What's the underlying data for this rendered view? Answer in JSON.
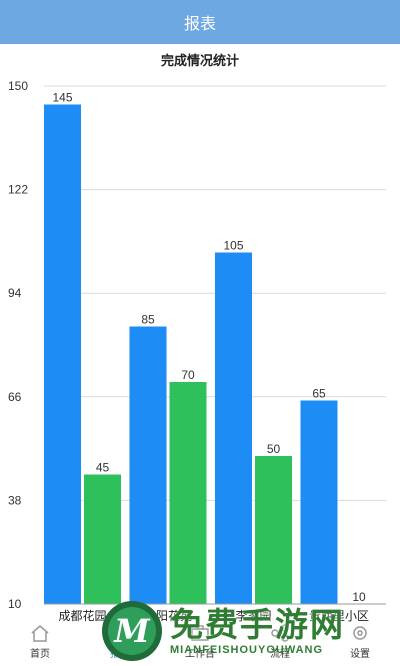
{
  "header": {
    "title": "报表"
  },
  "chart_data": {
    "type": "bar",
    "title": "完成情况统计",
    "categories": [
      "成都花园",
      "东阳花苑",
      "李家园",
      "贵西里小区"
    ],
    "series": [
      {
        "values": [
          145,
          85,
          105,
          65
        ],
        "color": "#1e8cf5"
      },
      {
        "values": [
          45,
          70,
          50,
          10
        ],
        "color": "#2ec05a"
      }
    ],
    "yticks": [
      10,
      38,
      66,
      94,
      122,
      150
    ],
    "ylim": [
      10,
      150
    ],
    "grid": true
  },
  "nav": {
    "items": [
      {
        "label": "首页",
        "icon": "home-icon"
      },
      {
        "label": "报表",
        "icon": "report-icon"
      },
      {
        "label": "工作台",
        "icon": "workbench-icon"
      },
      {
        "label": "流程",
        "icon": "flow-icon"
      },
      {
        "label": "设置",
        "icon": "settings-icon"
      }
    ]
  },
  "watermark": {
    "main": "免费手游网",
    "sub": "MIANFEISHOUYOUWANG",
    "logo_letter": "M"
  }
}
